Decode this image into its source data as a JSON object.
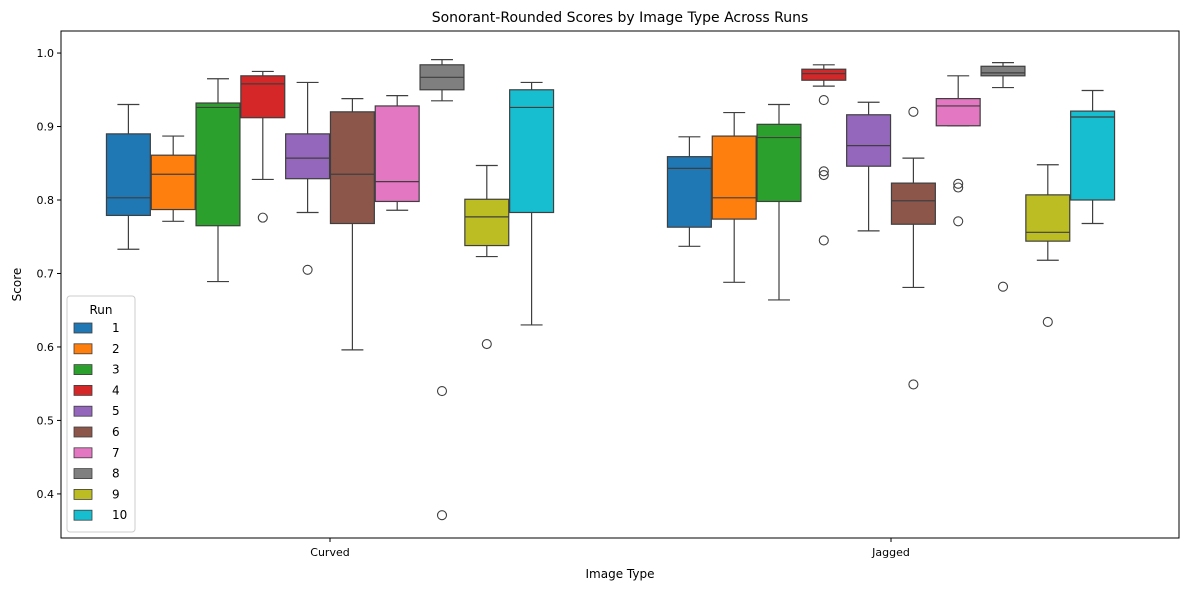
{
  "chart_data": {
    "type": "box",
    "title": "Sonorant-Rounded Scores by Image Type Across Runs",
    "xlabel": "Image Type",
    "ylabel": "Score",
    "categories": [
      "Curved",
      "Jagged"
    ],
    "ylim": [
      0.34,
      1.03
    ],
    "yticks": [
      0.4,
      0.5,
      0.6,
      0.7,
      0.8,
      0.9,
      1.0
    ],
    "ytick_labels": [
      "0.4",
      "0.5",
      "0.6",
      "0.7",
      "0.8",
      "0.9",
      "1.0"
    ],
    "grid": false,
    "legend": {
      "title": "Run",
      "placement": "lower-left"
    },
    "series": [
      {
        "name": "1",
        "color": "#1f77b4",
        "boxes": [
          {
            "category": "Curved",
            "whislo": 0.733,
            "q1": 0.779,
            "med": 0.803,
            "q3": 0.89,
            "whishi": 0.93,
            "fliers": []
          },
          {
            "category": "Jagged",
            "whislo": 0.737,
            "q1": 0.763,
            "med": 0.843,
            "q3": 0.859,
            "whishi": 0.886,
            "fliers": []
          }
        ]
      },
      {
        "name": "2",
        "color": "#ff7f0e",
        "boxes": [
          {
            "category": "Curved",
            "whislo": 0.771,
            "q1": 0.787,
            "med": 0.835,
            "q3": 0.861,
            "whishi": 0.887,
            "fliers": []
          },
          {
            "category": "Jagged",
            "whislo": 0.688,
            "q1": 0.774,
            "med": 0.803,
            "q3": 0.887,
            "whishi": 0.919,
            "fliers": []
          }
        ]
      },
      {
        "name": "3",
        "color": "#2ca02c",
        "boxes": [
          {
            "category": "Curved",
            "whislo": 0.689,
            "q1": 0.765,
            "med": 0.926,
            "q3": 0.932,
            "whishi": 0.965,
            "fliers": []
          },
          {
            "category": "Jagged",
            "whislo": 0.664,
            "q1": 0.798,
            "med": 0.885,
            "q3": 0.903,
            "whishi": 0.93,
            "fliers": []
          }
        ]
      },
      {
        "name": "4",
        "color": "#d62728",
        "boxes": [
          {
            "category": "Curved",
            "whislo": 0.828,
            "q1": 0.912,
            "med": 0.958,
            "q3": 0.969,
            "whishi": 0.975,
            "fliers": [
              0.776
            ]
          },
          {
            "category": "Jagged",
            "whislo": 0.955,
            "q1": 0.963,
            "med": 0.972,
            "q3": 0.978,
            "whishi": 0.984,
            "fliers": [
              0.936,
              0.839,
              0.834,
              0.745
            ]
          }
        ]
      },
      {
        "name": "5",
        "color": "#9467bd",
        "boxes": [
          {
            "category": "Curved",
            "whislo": 0.783,
            "q1": 0.829,
            "med": 0.857,
            "q3": 0.89,
            "whishi": 0.96,
            "fliers": [
              0.705
            ]
          },
          {
            "category": "Jagged",
            "whislo": 0.758,
            "q1": 0.846,
            "med": 0.874,
            "q3": 0.916,
            "whishi": 0.933,
            "fliers": []
          }
        ]
      },
      {
        "name": "6",
        "color": "#8c564b",
        "boxes": [
          {
            "category": "Curved",
            "whislo": 0.596,
            "q1": 0.768,
            "med": 0.835,
            "q3": 0.92,
            "whishi": 0.938,
            "fliers": []
          },
          {
            "category": "Jagged",
            "whislo": 0.681,
            "q1": 0.767,
            "med": 0.799,
            "q3": 0.823,
            "whishi": 0.857,
            "fliers": [
              0.92,
              0.549
            ]
          }
        ]
      },
      {
        "name": "7",
        "color": "#e377c2",
        "boxes": [
          {
            "category": "Curved",
            "whislo": 0.786,
            "q1": 0.798,
            "med": 0.825,
            "q3": 0.928,
            "whishi": 0.942,
            "fliers": []
          },
          {
            "category": "Jagged",
            "whislo": 0.901,
            "q1": 0.901,
            "med": 0.928,
            "q3": 0.938,
            "whishi": 0.969,
            "fliers": [
              0.822,
              0.817,
              0.771
            ]
          }
        ]
      },
      {
        "name": "8",
        "color": "#7f7f7f",
        "boxes": [
          {
            "category": "Curved",
            "whislo": 0.935,
            "q1": 0.95,
            "med": 0.967,
            "q3": 0.984,
            "whishi": 0.991,
            "fliers": [
              0.54,
              0.371
            ]
          },
          {
            "category": "Jagged",
            "whislo": 0.953,
            "q1": 0.969,
            "med": 0.973,
            "q3": 0.982,
            "whishi": 0.987,
            "fliers": [
              0.682
            ]
          }
        ]
      },
      {
        "name": "9",
        "color": "#bcbd22",
        "boxes": [
          {
            "category": "Curved",
            "whislo": 0.723,
            "q1": 0.738,
            "med": 0.777,
            "q3": 0.801,
            "whishi": 0.847,
            "fliers": [
              0.604
            ]
          },
          {
            "category": "Jagged",
            "whislo": 0.718,
            "q1": 0.744,
            "med": 0.756,
            "q3": 0.807,
            "whishi": 0.848,
            "fliers": [
              0.634
            ]
          }
        ]
      },
      {
        "name": "10",
        "color": "#17becf",
        "boxes": [
          {
            "category": "Curved",
            "whislo": 0.63,
            "q1": 0.783,
            "med": 0.926,
            "q3": 0.95,
            "whishi": 0.96,
            "fliers": []
          },
          {
            "category": "Jagged",
            "whislo": 0.768,
            "q1": 0.8,
            "med": 0.913,
            "q3": 0.921,
            "whishi": 0.949,
            "fliers": []
          }
        ]
      }
    ]
  }
}
